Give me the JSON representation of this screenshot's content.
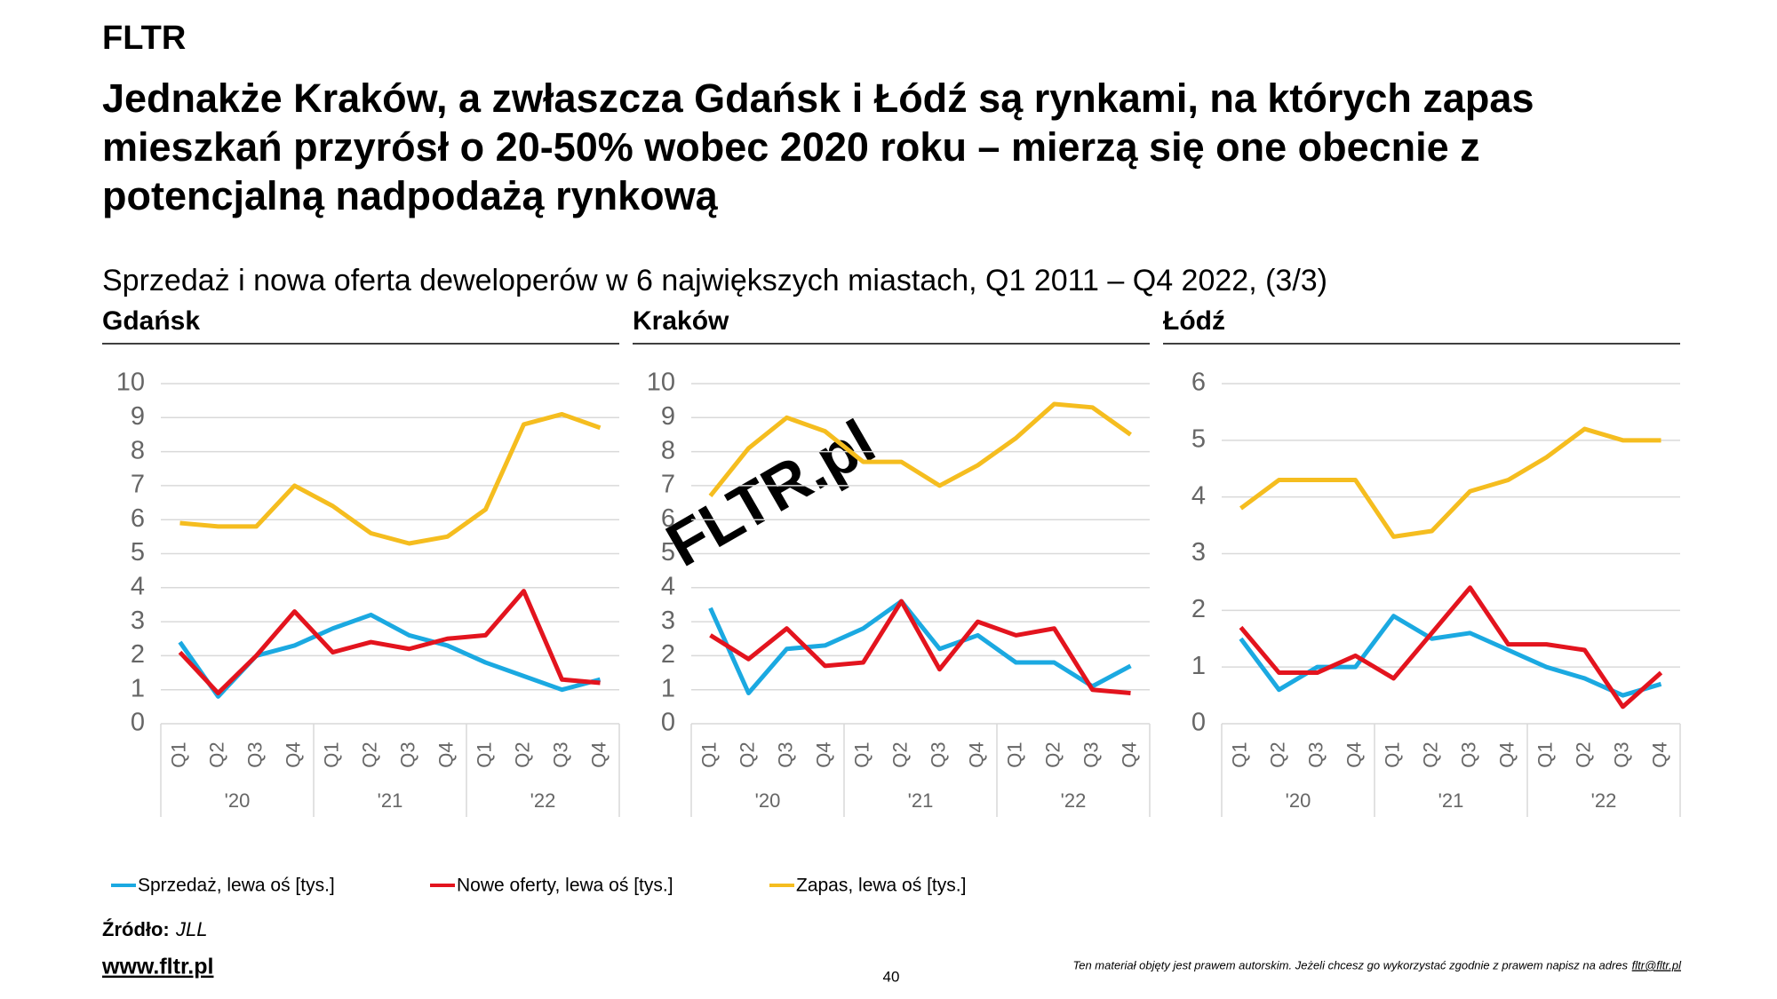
{
  "brand": "FLTR",
  "headline": [
    "Jednakże Kraków, a zwłaszcza Gdańsk i Łódź są rynkami, na których zapas",
    "mieszkań przyrósł o 20-50% wobec 2020 roku – mierzą się one obecnie z",
    "potencjalną nadpodażą rynkową"
  ],
  "subtitle": "Sprzedaż i nowa oferta deweloperów w 6 największych miastach, Q1 2011 – Q4 2022, (3/3)",
  "watermark": "FLTR.pl",
  "source_label": "Źródło:",
  "source": "JLL",
  "website": "www.fltr.pl",
  "page_number": "40",
  "copyright": "Ten materiał objęty jest prawem autorskim. Jeżeli chcesz go wykorzystać zgodnie z prawem napisz na adres",
  "copyright_email": "fltr@fltr.pl",
  "chart_data": [
    {
      "type": "line",
      "title": "Gdańsk",
      "categories": [
        "Q1",
        "Q2",
        "Q3",
        "Q4",
        "Q1",
        "Q2",
        "Q3",
        "Q4",
        "Q1",
        "Q2",
        "Q3",
        "Q4"
      ],
      "category_groups": [
        "'20",
        "'21",
        "'22"
      ],
      "ylim": [
        0,
        10
      ],
      "yticks": [
        0,
        1,
        2,
        3,
        4,
        5,
        6,
        7,
        8,
        9,
        10
      ],
      "grid": true,
      "series": [
        {
          "name": "Sprzedaż, lewa oś [tys.]",
          "color": "#1ba9e1",
          "values": [
            2.4,
            0.8,
            2.0,
            2.3,
            2.8,
            3.2,
            2.6,
            2.3,
            1.8,
            1.4,
            1.0,
            1.3
          ]
        },
        {
          "name": "Nowe oferty, lewa oś [tys.]",
          "color": "#e3141e",
          "values": [
            2.1,
            0.9,
            2.0,
            3.3,
            2.1,
            2.4,
            2.2,
            2.5,
            2.6,
            3.9,
            1.3,
            1.2
          ]
        },
        {
          "name": "Zapas, lewa oś [tys.]",
          "color": "#f5bd1f",
          "values": [
            5.9,
            5.8,
            5.8,
            7.0,
            6.4,
            5.6,
            5.3,
            5.5,
            6.3,
            8.8,
            9.1,
            8.7
          ]
        }
      ]
    },
    {
      "type": "line",
      "title": "Kraków",
      "categories": [
        "Q1",
        "Q2",
        "Q3",
        "Q4",
        "Q1",
        "Q2",
        "Q3",
        "Q4",
        "Q1",
        "Q2",
        "Q3",
        "Q4"
      ],
      "category_groups": [
        "'20",
        "'21",
        "'22"
      ],
      "ylim": [
        0,
        10
      ],
      "yticks": [
        0,
        1,
        2,
        3,
        4,
        5,
        6,
        7,
        8,
        9,
        10
      ],
      "grid": true,
      "series": [
        {
          "color": "#1ba9e1",
          "values": [
            3.4,
            0.9,
            2.2,
            2.3,
            2.8,
            3.6,
            2.2,
            2.6,
            1.8,
            1.8,
            1.1,
            1.7
          ]
        },
        {
          "color": "#e3141e",
          "values": [
            2.6,
            1.9,
            2.8,
            1.7,
            1.8,
            3.6,
            1.6,
            3.0,
            2.6,
            2.8,
            1.0,
            0.9
          ]
        },
        {
          "color": "#f5bd1f",
          "values": [
            6.7,
            8.1,
            9.0,
            8.6,
            7.7,
            7.7,
            7.0,
            7.6,
            8.4,
            9.4,
            9.3,
            8.5
          ]
        }
      ]
    },
    {
      "type": "line",
      "title": "Łódź",
      "categories": [
        "Q1",
        "Q2",
        "Q3",
        "Q4",
        "Q1",
        "Q2",
        "Q3",
        "Q4",
        "Q1",
        "Q2",
        "Q3",
        "Q4"
      ],
      "category_groups": [
        "'20",
        "'21",
        "'22"
      ],
      "ylim": [
        0,
        6
      ],
      "yticks": [
        0,
        1,
        2,
        3,
        4,
        5,
        6
      ],
      "grid": true,
      "series": [
        {
          "color": "#1ba9e1",
          "values": [
            1.5,
            0.6,
            1.0,
            1.0,
            1.9,
            1.5,
            1.6,
            1.3,
            1.0,
            0.8,
            0.5,
            0.7
          ]
        },
        {
          "color": "#e3141e",
          "values": [
            1.7,
            0.9,
            0.9,
            1.2,
            0.8,
            1.6,
            2.4,
            1.4,
            1.4,
            1.3,
            0.3,
            0.9
          ]
        },
        {
          "color": "#f5bd1f",
          "values": [
            3.8,
            4.3,
            4.3,
            4.3,
            3.3,
            3.4,
            4.1,
            4.3,
            4.7,
            5.2,
            5.0,
            5.0
          ]
        }
      ]
    }
  ]
}
